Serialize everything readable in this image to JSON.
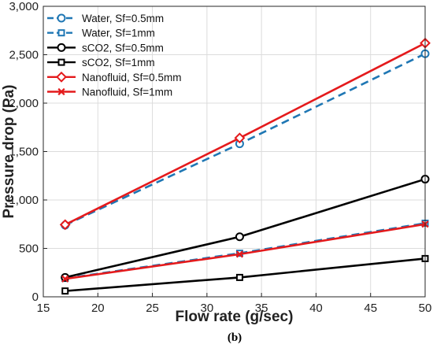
{
  "caption": "(b)",
  "chart_data": {
    "type": "line",
    "title": "",
    "xlabel": "Flow rate (g/sec)",
    "ylabel": "Pressure drop (Pa)",
    "xlim": [
      15,
      50
    ],
    "ylim": [
      0,
      3000
    ],
    "xticks": [
      15,
      20,
      25,
      30,
      35,
      40,
      45,
      50
    ],
    "xtick_labels": [
      "15",
      "20",
      "25",
      "30",
      "35",
      "40",
      "45",
      "50"
    ],
    "yticks": [
      0,
      500,
      1000,
      1500,
      2000,
      2500,
      3000
    ],
    "ytick_labels": [
      "0",
      "500",
      "1,000",
      "1,500",
      "2,000",
      "2,500",
      "3,000"
    ],
    "grid": true,
    "legend_position": "top-left",
    "series": [
      {
        "name": "Water, Sf=0.5mm",
        "x": [
          17,
          33,
          50
        ],
        "values": [
          740,
          1580,
          2510
        ],
        "color": "#1f77b4",
        "dash": "dashed",
        "marker": "circle"
      },
      {
        "name": "Water, Sf=1mm",
        "x": [
          17,
          33,
          50
        ],
        "values": [
          190,
          450,
          760
        ],
        "color": "#1f77b4",
        "dash": "dashed",
        "marker": "square"
      },
      {
        "name": "sCO2, Sf=0.5mm",
        "x": [
          17,
          33,
          50
        ],
        "values": [
          200,
          620,
          1215
        ],
        "color": "#000000",
        "dash": "solid",
        "marker": "circle"
      },
      {
        "name": "sCO2, Sf=1mm",
        "x": [
          17,
          33,
          50
        ],
        "values": [
          60,
          200,
          395
        ],
        "color": "#000000",
        "dash": "solid",
        "marker": "square"
      },
      {
        "name": "Nanofluid, Sf=0.5mm",
        "x": [
          17,
          33,
          50
        ],
        "values": [
          745,
          1640,
          2620
        ],
        "color": "#e41a1c",
        "dash": "solid",
        "marker": "diamond"
      },
      {
        "name": "Nanofluid, Sf=1mm",
        "x": [
          17,
          33,
          50
        ],
        "values": [
          185,
          440,
          750
        ],
        "color": "#e41a1c",
        "dash": "solid",
        "marker": "x"
      }
    ]
  }
}
